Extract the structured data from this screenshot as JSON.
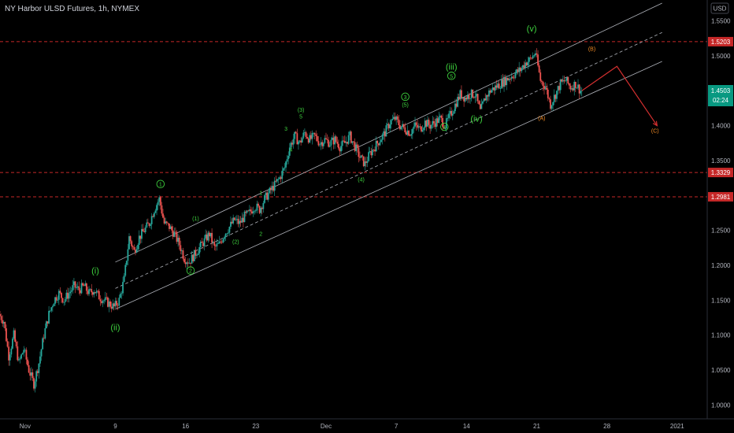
{
  "header": {
    "title": "NY Harbor ULSD Futures, 1h, NYMEX"
  },
  "axis": {
    "currency": "USD"
  },
  "price_badge": {
    "value": "1.4503",
    "countdown": "02:24"
  },
  "chart_data": {
    "type": "candlestick",
    "title": "NY Harbor ULSD Futures, 1h, NYMEX",
    "ylim": [
      0.98,
      1.58
    ],
    "y_ticks": [
      "1.5500",
      "1.5000",
      "1.4500",
      "1.4000",
      "1.3500",
      "1.3000",
      "1.2500",
      "1.2000",
      "1.1500",
      "1.1000",
      "1.0500",
      "1.0000"
    ],
    "y_tick_values": [
      1.55,
      1.5,
      1.45,
      1.4,
      1.35,
      1.3,
      1.25,
      1.2,
      1.15,
      1.1,
      1.05,
      1.0
    ],
    "x_ticks": [
      "Nov",
      "9",
      "16",
      "23",
      "Dec",
      "7",
      "14",
      "21",
      "28",
      "2021"
    ],
    "x_tick_days": [
      0,
      9,
      16,
      23,
      30,
      37,
      44,
      51,
      58,
      65
    ],
    "xlim": [
      -2.5,
      68
    ],
    "last_price": 1.4503,
    "horizontal_lines": [
      {
        "value": 1.5203,
        "label": "1.5203",
        "color": "#c62828"
      },
      {
        "value": 1.3329,
        "label": "1.3329",
        "color": "#c62828"
      },
      {
        "value": 1.2981,
        "label": "1.2981",
        "color": "#c62828"
      }
    ],
    "price_path": [
      [
        -2.5,
        1.13
      ],
      [
        -2.0,
        1.12
      ],
      [
        -1.5,
        1.07
      ],
      [
        -1.0,
        1.1
      ],
      [
        -0.5,
        1.06
      ],
      [
        0.0,
        1.08
      ],
      [
        0.5,
        1.05
      ],
      [
        1.0,
        1.03
      ],
      [
        1.5,
        1.06
      ],
      [
        2.0,
        1.1
      ],
      [
        2.5,
        1.13
      ],
      [
        3.0,
        1.15
      ],
      [
        3.5,
        1.16
      ],
      [
        4.0,
        1.15
      ],
      [
        4.5,
        1.16
      ],
      [
        5.0,
        1.17
      ],
      [
        5.5,
        1.165
      ],
      [
        6.0,
        1.17
      ],
      [
        6.5,
        1.16
      ],
      [
        7.0,
        1.165
      ],
      [
        7.5,
        1.155
      ],
      [
        8.0,
        1.15
      ],
      [
        8.5,
        1.145
      ],
      [
        9.0,
        1.14
      ],
      [
        9.5,
        1.15
      ],
      [
        10.0,
        1.18
      ],
      [
        10.5,
        1.24
      ],
      [
        11.0,
        1.22
      ],
      [
        11.5,
        1.24
      ],
      [
        12.0,
        1.25
      ],
      [
        12.5,
        1.26
      ],
      [
        13.0,
        1.28
      ],
      [
        13.5,
        1.295
      ],
      [
        14.0,
        1.26
      ],
      [
        14.5,
        1.255
      ],
      [
        15.0,
        1.245
      ],
      [
        15.5,
        1.23
      ],
      [
        16.0,
        1.21
      ],
      [
        16.5,
        1.205
      ],
      [
        17.0,
        1.215
      ],
      [
        17.5,
        1.225
      ],
      [
        18.0,
        1.235
      ],
      [
        18.5,
        1.245
      ],
      [
        19.0,
        1.225
      ],
      [
        19.5,
        1.23
      ],
      [
        20.0,
        1.245
      ],
      [
        20.5,
        1.255
      ],
      [
        21.0,
        1.265
      ],
      [
        21.5,
        1.26
      ],
      [
        22.0,
        1.27
      ],
      [
        22.5,
        1.275
      ],
      [
        23.0,
        1.285
      ],
      [
        23.5,
        1.28
      ],
      [
        24.0,
        1.295
      ],
      [
        24.5,
        1.305
      ],
      [
        25.0,
        1.315
      ],
      [
        25.5,
        1.325
      ],
      [
        26.0,
        1.34
      ],
      [
        26.5,
        1.37
      ],
      [
        27.0,
        1.385
      ],
      [
        27.5,
        1.375
      ],
      [
        28.0,
        1.39
      ],
      [
        28.5,
        1.38
      ],
      [
        29.0,
        1.385
      ],
      [
        29.5,
        1.375
      ],
      [
        30.0,
        1.38
      ],
      [
        30.5,
        1.375
      ],
      [
        31.0,
        1.38
      ],
      [
        31.5,
        1.37
      ],
      [
        32.0,
        1.375
      ],
      [
        32.5,
        1.385
      ],
      [
        33.0,
        1.37
      ],
      [
        33.5,
        1.355
      ],
      [
        34.0,
        1.345
      ],
      [
        34.5,
        1.36
      ],
      [
        35.0,
        1.37
      ],
      [
        35.5,
        1.38
      ],
      [
        36.0,
        1.39
      ],
      [
        36.5,
        1.405
      ],
      [
        37.0,
        1.41
      ],
      [
        37.5,
        1.4
      ],
      [
        38.0,
        1.395
      ],
      [
        38.5,
        1.39
      ],
      [
        39.0,
        1.4
      ],
      [
        39.5,
        1.395
      ],
      [
        40.0,
        1.405
      ],
      [
        40.5,
        1.4
      ],
      [
        41.0,
        1.405
      ],
      [
        41.5,
        1.41
      ],
      [
        42.0,
        1.4
      ],
      [
        42.5,
        1.415
      ],
      [
        43.0,
        1.43
      ],
      [
        43.5,
        1.445
      ],
      [
        44.0,
        1.44
      ],
      [
        44.5,
        1.445
      ],
      [
        45.0,
        1.445
      ],
      [
        45.5,
        1.42
      ],
      [
        46.0,
        1.44
      ],
      [
        46.5,
        1.45
      ],
      [
        47.0,
        1.455
      ],
      [
        47.5,
        1.46
      ],
      [
        48.0,
        1.465
      ],
      [
        48.5,
        1.47
      ],
      [
        49.0,
        1.475
      ],
      [
        49.5,
        1.48
      ],
      [
        50.0,
        1.49
      ],
      [
        50.5,
        1.495
      ],
      [
        51.0,
        1.505
      ],
      [
        51.5,
        1.465
      ],
      [
        52.0,
        1.455
      ],
      [
        52.5,
        1.43
      ],
      [
        53.0,
        1.445
      ],
      [
        53.5,
        1.46
      ],
      [
        54.0,
        1.465
      ],
      [
        54.5,
        1.455
      ],
      [
        55.0,
        1.46
      ],
      [
        55.5,
        1.45
      ]
    ],
    "channel_lines": [
      {
        "from": [
          9.0,
          1.2045
        ],
        "to": [
          63.5,
          1.5755
        ],
        "style": "solid"
      },
      {
        "from": [
          9.0,
          1.1668
        ],
        "to": [
          63.5,
          1.5335
        ],
        "style": "dashed"
      },
      {
        "from": [
          9.0,
          1.137
        ],
        "to": [
          63.5,
          1.492
        ],
        "style": "solid"
      }
    ],
    "projection": [
      [
        55.5,
        1.45
      ],
      [
        59.0,
        1.485
      ],
      [
        63.0,
        1.4
      ]
    ],
    "wave_labels": [
      {
        "text": "(i)",
        "day": 7.0,
        "price": 1.188,
        "color": "green",
        "size": "large"
      },
      {
        "text": "(ii)",
        "day": 9.0,
        "price": 1.107,
        "color": "green",
        "size": "large"
      },
      {
        "text": "1",
        "day": 13.5,
        "price": 1.313,
        "color": "green",
        "size": "circled"
      },
      {
        "text": "(1)",
        "day": 17.0,
        "price": 1.264,
        "color": "green",
        "size": "small"
      },
      {
        "text": "2",
        "day": 16.5,
        "price": 1.189,
        "color": "green",
        "size": "circled"
      },
      {
        "text": "(2)",
        "day": 21.0,
        "price": 1.231,
        "color": "green",
        "size": "small"
      },
      {
        "text": "1",
        "day": 23.5,
        "price": 1.301,
        "color": "green",
        "size": "small"
      },
      {
        "text": "2",
        "day": 23.5,
        "price": 1.242,
        "color": "green",
        "size": "small"
      },
      {
        "text": "3",
        "day": 26.0,
        "price": 1.393,
        "color": "green",
        "size": "small"
      },
      {
        "text": "(3)",
        "day": 27.5,
        "price": 1.42,
        "color": "green",
        "size": "small"
      },
      {
        "text": "5",
        "day": 27.5,
        "price": 1.41,
        "color": "green",
        "size": "small"
      },
      {
        "text": "4",
        "day": 26.5,
        "price": 1.363,
        "color": "green",
        "size": "small"
      },
      {
        "text": "(4)",
        "day": 33.5,
        "price": 1.32,
        "color": "green",
        "size": "small"
      },
      {
        "text": "3",
        "day": 37.9,
        "price": 1.438,
        "color": "green",
        "size": "circled"
      },
      {
        "text": "(5)",
        "day": 37.9,
        "price": 1.427,
        "color": "green",
        "size": "small"
      },
      {
        "text": "4",
        "day": 41.8,
        "price": 1.395,
        "color": "green",
        "size": "circled"
      },
      {
        "text": "(iii)",
        "day": 42.5,
        "price": 1.48,
        "color": "green",
        "size": "large"
      },
      {
        "text": "5",
        "day": 42.5,
        "price": 1.468,
        "color": "green",
        "size": "circled"
      },
      {
        "text": "(iv)",
        "day": 45.0,
        "price": 1.406,
        "color": "green",
        "size": "large"
      },
      {
        "text": "(v)",
        "day": 50.5,
        "price": 1.535,
        "color": "green",
        "size": "large"
      },
      {
        "text": "(B)",
        "day": 56.5,
        "price": 1.507,
        "color": "orange",
        "size": "small"
      },
      {
        "text": "(A)",
        "day": 51.5,
        "price": 1.408,
        "color": "orange",
        "size": "small"
      },
      {
        "text": "(C)",
        "day": 62.8,
        "price": 1.39,
        "color": "orange",
        "size": "small"
      }
    ],
    "grid": false
  }
}
